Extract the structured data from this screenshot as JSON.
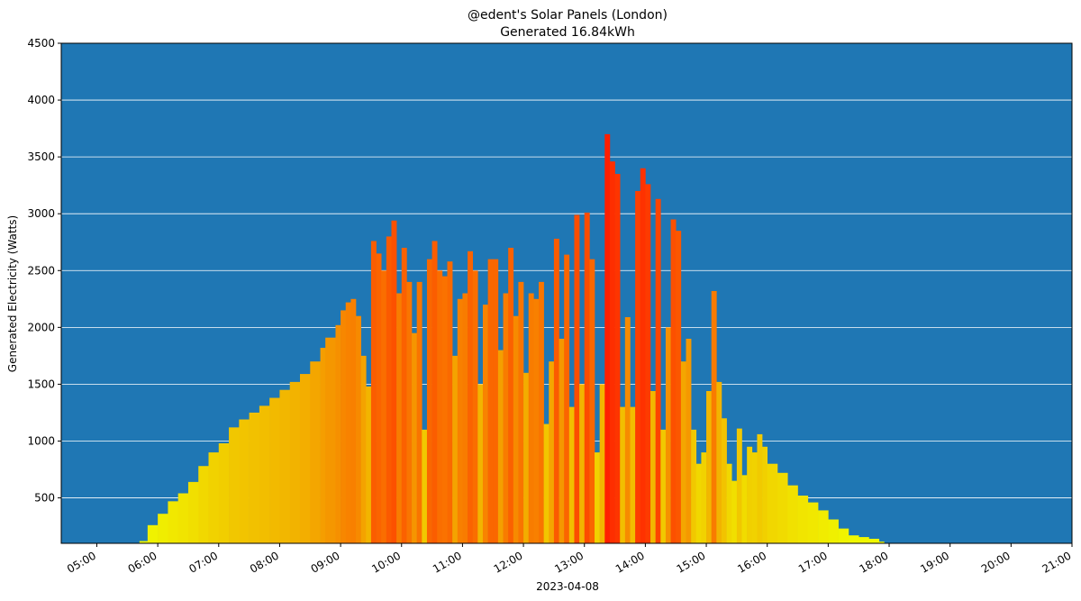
{
  "chart_data": {
    "type": "bar",
    "title": "@edent's Solar Panels (London)",
    "subtitle": "Generated 16.84kWh",
    "xlabel": "2023-04-08",
    "ylabel": "Generated Electricity (Watts)",
    "ylim": [
      100,
      4500
    ],
    "xlim": [
      "04:25",
      "21:00"
    ],
    "y_ticks": [
      500,
      1000,
      1500,
      2000,
      2500,
      3000,
      3500,
      4000,
      4500
    ],
    "x_ticks": [
      "05:00",
      "06:00",
      "07:00",
      "08:00",
      "09:00",
      "10:00",
      "11:00",
      "12:00",
      "13:00",
      "14:00",
      "15:00",
      "16:00",
      "17:00",
      "18:00",
      "19:00",
      "20:00",
      "21:00"
    ],
    "grid": "horizontal",
    "background_color": "#1f77b4",
    "gridline_color": "#ffffff",
    "series": [
      {
        "values": [
          [
            "05:42",
            120
          ],
          [
            "05:50",
            260
          ],
          [
            "06:00",
            360
          ],
          [
            "06:10",
            470
          ],
          [
            "06:20",
            540
          ],
          [
            "06:30",
            640
          ],
          [
            "06:40",
            780
          ],
          [
            "06:50",
            900
          ],
          [
            "07:00",
            980
          ],
          [
            "07:10",
            1120
          ],
          [
            "07:20",
            1190
          ],
          [
            "07:30",
            1250
          ],
          [
            "07:40",
            1310
          ],
          [
            "07:50",
            1380
          ],
          [
            "08:00",
            1450
          ],
          [
            "08:10",
            1520
          ],
          [
            "08:20",
            1590
          ],
          [
            "08:30",
            1700
          ],
          [
            "08:40",
            1820
          ],
          [
            "08:45",
            1910
          ],
          [
            "08:55",
            2020
          ],
          [
            "09:00",
            2150
          ],
          [
            "09:05",
            2220
          ],
          [
            "09:10",
            2250
          ],
          [
            "09:15",
            2100
          ],
          [
            "09:20",
            1750
          ],
          [
            "09:25",
            1480
          ],
          [
            "09:30",
            2760
          ],
          [
            "09:35",
            2650
          ],
          [
            "09:40",
            2500
          ],
          [
            "09:45",
            2800
          ],
          [
            "09:50",
            2940
          ],
          [
            "09:55",
            2300
          ],
          [
            "10:00",
            2700
          ],
          [
            "10:05",
            2400
          ],
          [
            "10:10",
            1950
          ],
          [
            "10:15",
            2400
          ],
          [
            "10:20",
            1100
          ],
          [
            "10:25",
            2600
          ],
          [
            "10:30",
            2760
          ],
          [
            "10:35",
            2500
          ],
          [
            "10:40",
            2450
          ],
          [
            "10:45",
            2580
          ],
          [
            "10:50",
            1750
          ],
          [
            "10:55",
            2250
          ],
          [
            "11:00",
            2300
          ],
          [
            "11:05",
            2670
          ],
          [
            "11:10",
            2500
          ],
          [
            "11:15",
            1500
          ],
          [
            "11:20",
            2200
          ],
          [
            "11:25",
            2600
          ],
          [
            "11:30",
            2600
          ],
          [
            "11:35",
            1800
          ],
          [
            "11:40",
            2300
          ],
          [
            "11:45",
            2700
          ],
          [
            "11:50",
            2100
          ],
          [
            "11:55",
            2400
          ],
          [
            "12:00",
            1600
          ],
          [
            "12:05",
            2300
          ],
          [
            "12:10",
            2250
          ],
          [
            "12:15",
            2400
          ],
          [
            "12:20",
            1150
          ],
          [
            "12:25",
            1700
          ],
          [
            "12:30",
            2780
          ],
          [
            "12:35",
            1900
          ],
          [
            "12:40",
            2640
          ],
          [
            "12:45",
            1300
          ],
          [
            "12:50",
            2990
          ],
          [
            "12:55",
            1500
          ],
          [
            "13:00",
            3010
          ],
          [
            "13:05",
            2600
          ],
          [
            "13:10",
            900
          ],
          [
            "13:15",
            1500
          ],
          [
            "13:20",
            3700
          ],
          [
            "13:25",
            3460
          ],
          [
            "13:30",
            3350
          ],
          [
            "13:35",
            1300
          ],
          [
            "13:40",
            2090
          ],
          [
            "13:45",
            1300
          ],
          [
            "13:50",
            3200
          ],
          [
            "13:55",
            3400
          ],
          [
            "14:00",
            3260
          ],
          [
            "14:05",
            1440
          ],
          [
            "14:10",
            3130
          ],
          [
            "14:15",
            1100
          ],
          [
            "14:20",
            2000
          ],
          [
            "14:25",
            2950
          ],
          [
            "14:30",
            2850
          ],
          [
            "14:35",
            1700
          ],
          [
            "14:40",
            1900
          ],
          [
            "14:45",
            1100
          ],
          [
            "14:50",
            800
          ],
          [
            "14:55",
            900
          ],
          [
            "15:00",
            1440
          ],
          [
            "15:05",
            2320
          ],
          [
            "15:10",
            1520
          ],
          [
            "15:15",
            1200
          ],
          [
            "15:20",
            800
          ],
          [
            "15:25",
            650
          ],
          [
            "15:30",
            1110
          ],
          [
            "15:35",
            700
          ],
          [
            "15:40",
            950
          ],
          [
            "15:45",
            900
          ],
          [
            "15:50",
            1060
          ],
          [
            "15:55",
            950
          ],
          [
            "16:00",
            800
          ],
          [
            "16:10",
            720
          ],
          [
            "16:20",
            610
          ],
          [
            "16:30",
            520
          ],
          [
            "16:40",
            460
          ],
          [
            "16:50",
            390
          ],
          [
            "17:00",
            310
          ],
          [
            "17:10",
            230
          ],
          [
            "17:20",
            170
          ],
          [
            "17:30",
            155
          ],
          [
            "17:40",
            140
          ],
          [
            "17:50",
            115
          ],
          [
            "17:55",
            100
          ]
        ]
      }
    ]
  }
}
